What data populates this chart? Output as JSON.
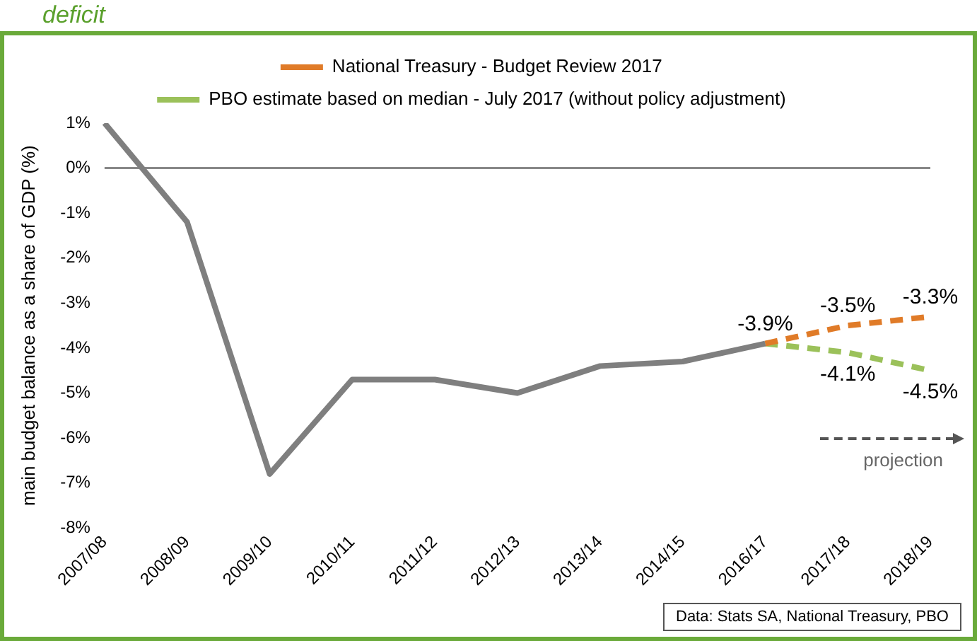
{
  "chart_data": {
    "type": "line",
    "title": "deficit",
    "ylabel": "main budget balance as a share of GDP (%)",
    "categories": [
      "2007/08",
      "2008/09",
      "2009/10",
      "2010/11",
      "2011/12",
      "2012/13",
      "2013/14",
      "2014/15",
      "2016/17",
      "2017/18",
      "2018/19"
    ],
    "series": [
      {
        "color": "#7f7f7f",
        "line_style": "solid",
        "values": [
          1.0,
          -1.2,
          -6.8,
          -4.7,
          -4.7,
          -5.0,
          -4.4,
          -4.3,
          -3.9,
          null,
          null
        ]
      },
      {
        "name": "National Treasury - Budget Review 2017",
        "color": "#e07b28",
        "line_style": "dashed",
        "values": [
          null,
          null,
          null,
          null,
          null,
          null,
          null,
          null,
          -3.9,
          -3.5,
          -3.3
        ],
        "value_labels": [
          null,
          null,
          null,
          null,
          null,
          null,
          null,
          null,
          "-3.9%",
          "-3.5%",
          "-3.3%"
        ]
      },
      {
        "name": "PBO estimate based on median - July 2017 (without policy adjustment)",
        "color": "#9bc15a",
        "line_style": "dashed",
        "values": [
          null,
          null,
          null,
          null,
          null,
          null,
          null,
          null,
          -3.9,
          -4.1,
          -4.5
        ],
        "value_labels": [
          null,
          null,
          null,
          null,
          null,
          null,
          null,
          null,
          null,
          "-4.1%",
          "-4.5%"
        ]
      }
    ],
    "ylim": [
      -8,
      1
    ],
    "yticks": [
      {
        "value": 1,
        "label": "1%"
      },
      {
        "value": 0,
        "label": "0%"
      },
      {
        "value": -1,
        "label": "-1%"
      },
      {
        "value": -2,
        "label": "-2%"
      },
      {
        "value": -3,
        "label": "-3%"
      },
      {
        "value": -4,
        "label": "-4%"
      },
      {
        "value": -5,
        "label": "-5%"
      },
      {
        "value": -6,
        "label": "-6%"
      },
      {
        "value": -7,
        "label": "-7%"
      },
      {
        "value": -8,
        "label": "-8%"
      }
    ],
    "ref_lines": [
      {
        "axis": "y",
        "value": 0,
        "color": "#888888"
      }
    ],
    "grid": false,
    "legend": "top",
    "marker": "none",
    "annotations": [
      "projection",
      "Data: Stats SA, National Treasury, PBO"
    ]
  }
}
